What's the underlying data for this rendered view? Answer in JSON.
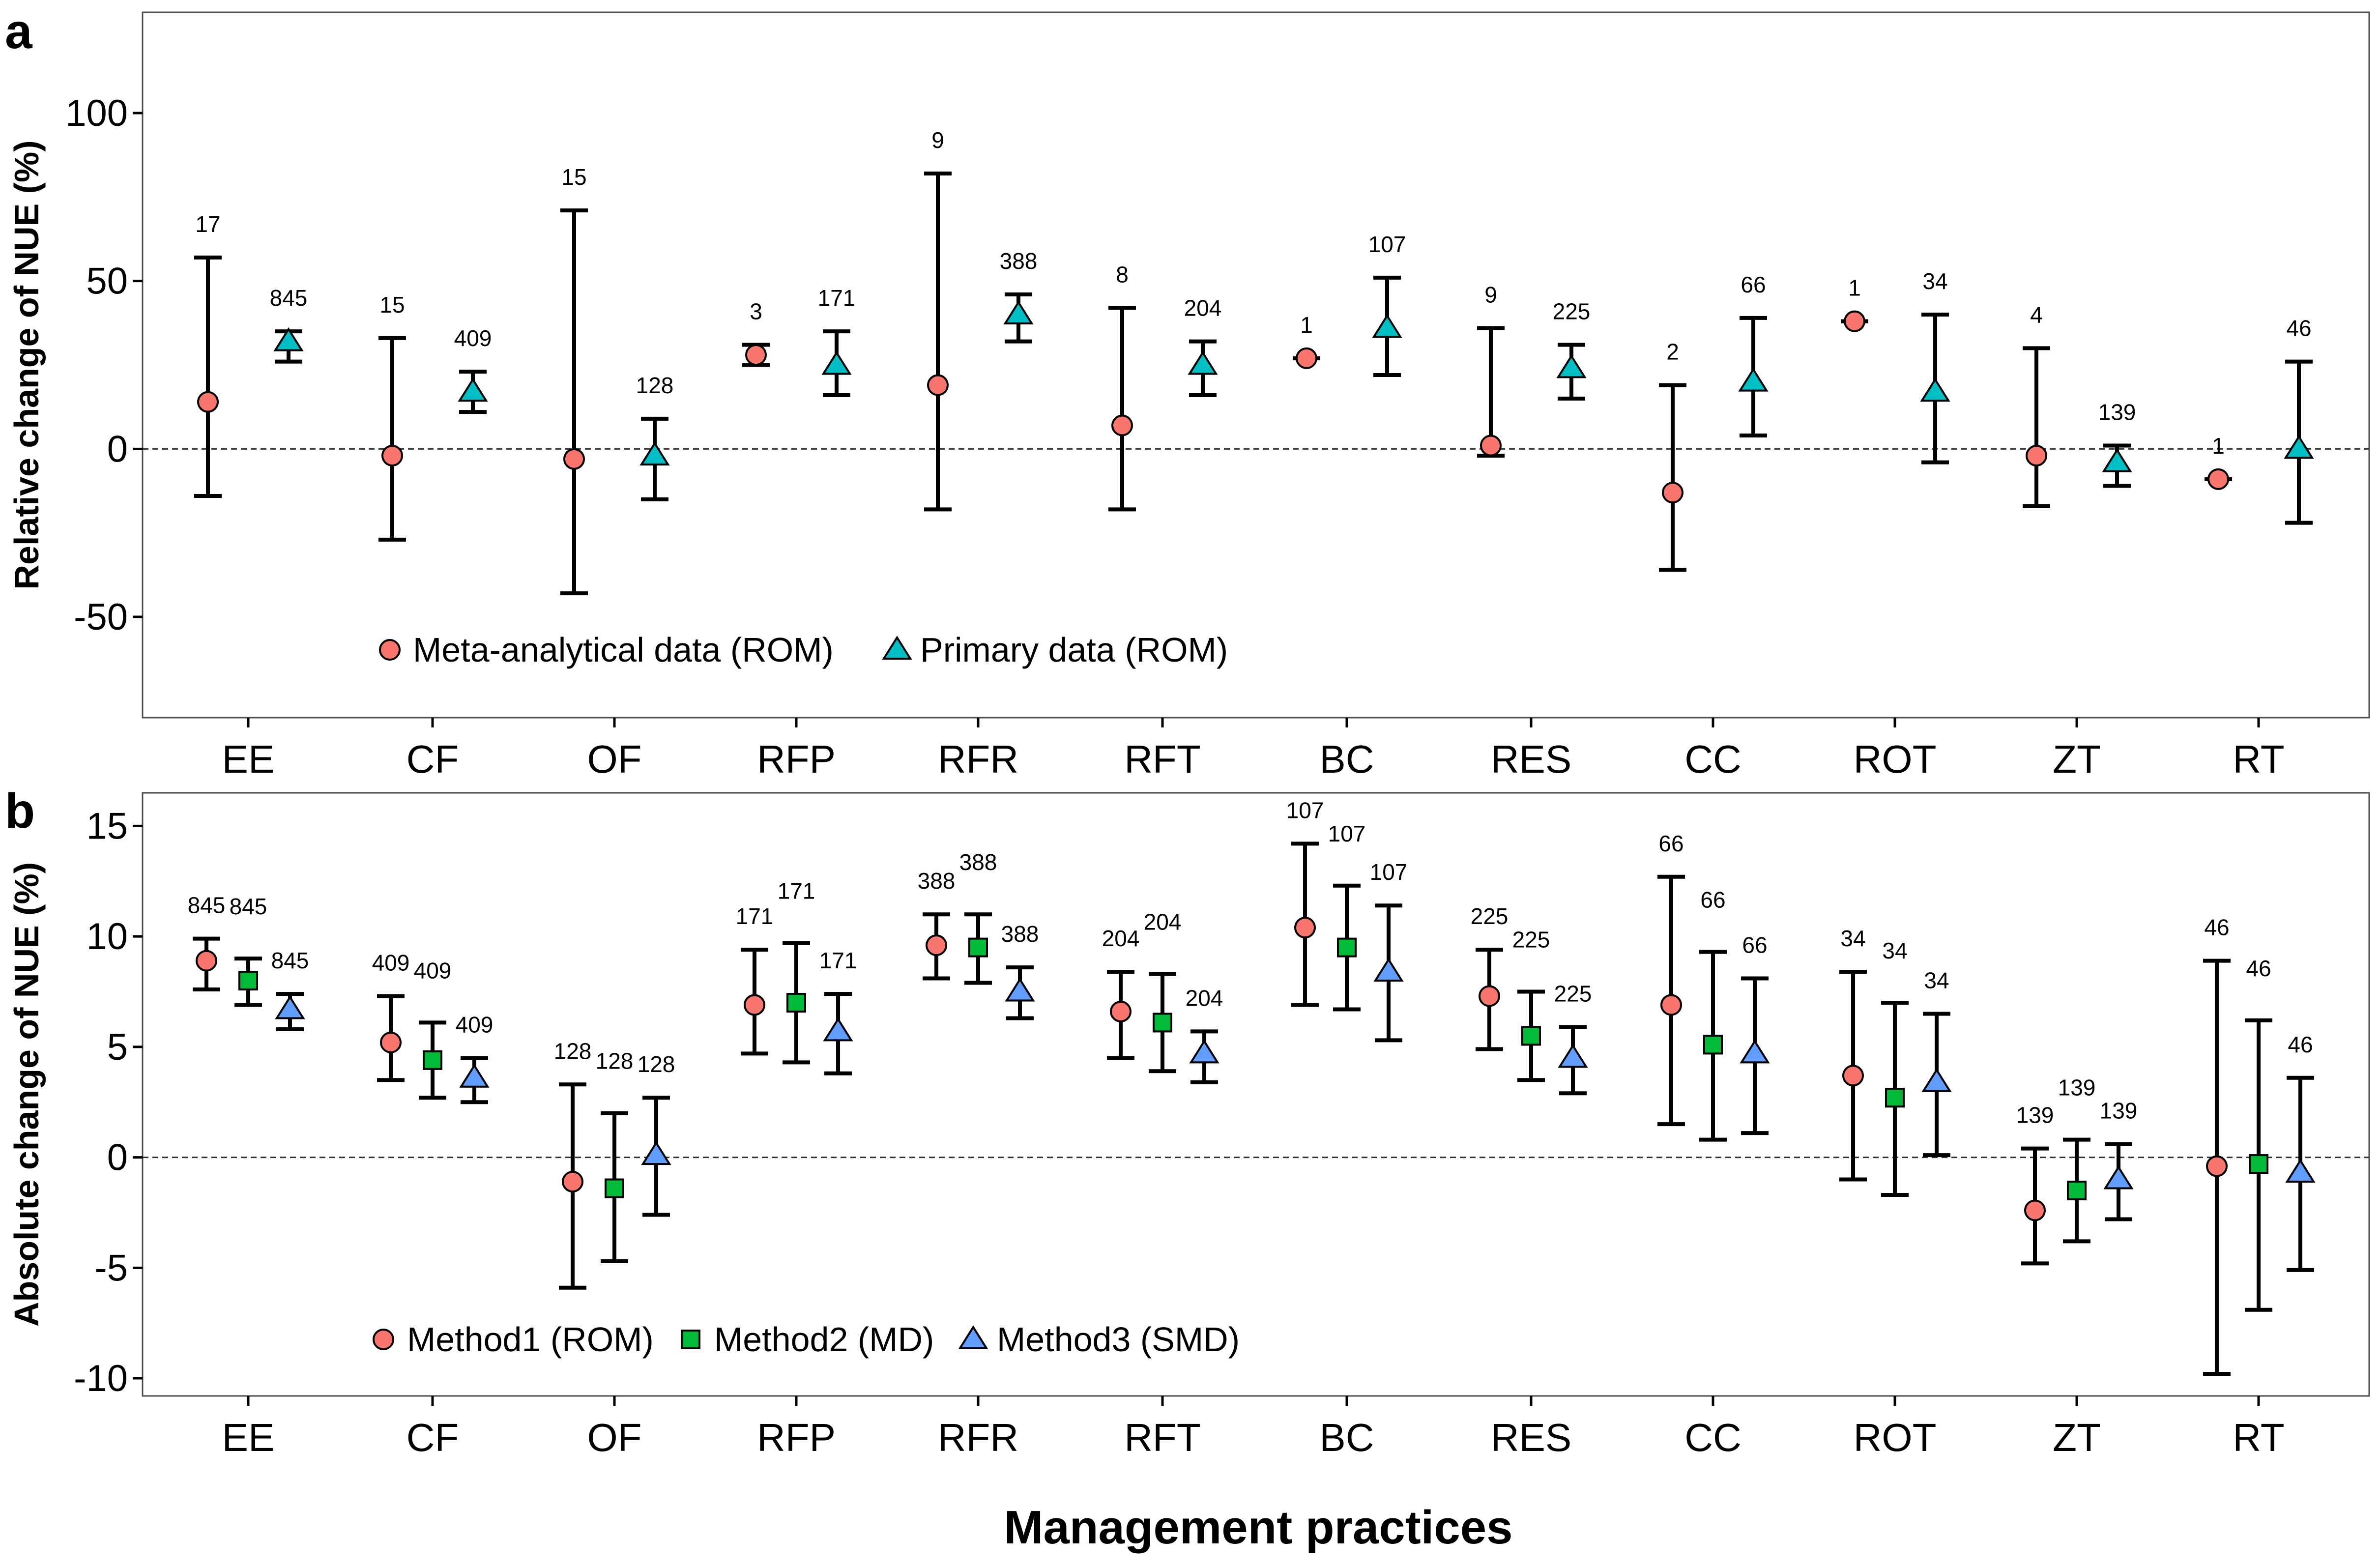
{
  "figure": {
    "xlabel": "Management practices",
    "colors": {
      "meta_rom": "#F8766D",
      "primary_rom": "#00BFC4",
      "md": "#00BA38",
      "smd": "#619CFF"
    }
  },
  "chart_data": [
    {
      "panel_tag": "a",
      "type": "scatter",
      "subtype": "point-with-error-bars",
      "ylabel": "Relative change of NUE (%)",
      "ylim": [
        -80,
        130
      ],
      "yticks": [
        -50,
        0,
        50,
        100
      ],
      "reference_line": 0,
      "legend_position": "bottom-left",
      "categories": [
        "EE",
        "CF",
        "OF",
        "RFP",
        "RFR",
        "RFT",
        "BC",
        "RES",
        "CC",
        "ROT",
        "ZT",
        "RT"
      ],
      "series": [
        {
          "name": "Meta-analytical data (ROM)",
          "marker": "circle",
          "color": "#F8766D",
          "values": [
            14,
            -2,
            -3,
            28,
            19,
            7,
            27,
            1,
            -13,
            38,
            -2,
            -9
          ],
          "lower": [
            -14,
            -27,
            -43,
            25,
            -18,
            -18,
            27,
            -2,
            -36,
            38,
            -17,
            -9
          ],
          "upper": [
            57,
            33,
            71,
            31,
            82,
            42,
            27,
            36,
            19,
            38,
            30,
            -9
          ],
          "n": [
            "17",
            "15",
            "15",
            "3",
            "9",
            "8",
            "1",
            "9",
            "2",
            "1",
            "4",
            "1"
          ]
        },
        {
          "name": "Primary data (ROM)",
          "marker": "triangle",
          "color": "#00BFC4",
          "values": [
            32,
            17,
            -2,
            25,
            40,
            25,
            36,
            24,
            20,
            17,
            -4,
            0
          ],
          "lower": [
            26,
            11,
            -15,
            16,
            32,
            16,
            22,
            15,
            4,
            -4,
            -11,
            -22
          ],
          "upper": [
            35,
            23,
            9,
            35,
            46,
            32,
            51,
            31,
            39,
            40,
            1,
            26
          ],
          "n": [
            "845",
            "409",
            "128",
            "171",
            "388",
            "204",
            "107",
            "225",
            "66",
            "34",
            "139",
            "46"
          ]
        }
      ]
    },
    {
      "panel_tag": "b",
      "type": "scatter",
      "subtype": "point-with-error-bars",
      "ylabel": "Absolute change of NUE (%)",
      "ylim": [
        -10.8,
        16.5
      ],
      "yticks": [
        -10,
        -5,
        0,
        5,
        10,
        15
      ],
      "reference_line": 0,
      "legend_position": "bottom-left",
      "categories": [
        "EE",
        "CF",
        "OF",
        "RFP",
        "RFR",
        "RFT",
        "BC",
        "RES",
        "CC",
        "ROT",
        "ZT",
        "RT"
      ],
      "series": [
        {
          "name": "Method1 (ROM)",
          "marker": "circle",
          "color": "#F8766D",
          "values": [
            8.9,
            5.2,
            -1.1,
            6.9,
            9.6,
            6.6,
            10.4,
            7.3,
            6.9,
            3.7,
            -2.4,
            -0.4
          ],
          "lower": [
            7.6,
            3.5,
            -5.9,
            4.7,
            8.1,
            4.5,
            6.9,
            4.9,
            1.5,
            -1.0,
            -4.8,
            -9.8
          ],
          "upper": [
            9.9,
            7.3,
            3.3,
            9.4,
            11.0,
            8.4,
            14.2,
            9.4,
            12.7,
            8.4,
            0.4,
            8.9
          ],
          "n": [
            "845",
            "409",
            "128",
            "171",
            "388",
            "204",
            "107",
            "225",
            "66",
            "34",
            "139",
            "46"
          ]
        },
        {
          "name": "Method2 (MD)",
          "marker": "square",
          "color": "#00BA38",
          "values": [
            8.0,
            4.4,
            -1.4,
            7.0,
            9.5,
            6.1,
            9.5,
            5.5,
            5.1,
            2.7,
            -1.5,
            -0.3
          ],
          "lower": [
            6.9,
            2.7,
            -4.7,
            4.3,
            7.9,
            3.9,
            6.7,
            3.5,
            0.8,
            -1.7,
            -3.8,
            -6.9
          ],
          "upper": [
            9.0,
            6.1,
            2.0,
            9.7,
            11.0,
            8.3,
            12.3,
            7.5,
            9.3,
            7.0,
            0.8,
            6.2
          ],
          "n": [
            "845",
            "409",
            "128",
            "171",
            "388",
            "204",
            "107",
            "225",
            "66",
            "34",
            "139",
            "46"
          ]
        },
        {
          "name": "Method3 (SMD)",
          "marker": "triangle",
          "color": "#619CFF",
          "values": [
            6.7,
            3.6,
            0.1,
            5.7,
            7.5,
            4.7,
            8.4,
            4.5,
            4.7,
            3.4,
            -1.0,
            -0.7
          ],
          "lower": [
            5.8,
            2.5,
            -2.6,
            3.8,
            6.3,
            3.4,
            5.3,
            2.9,
            1.1,
            0.1,
            -2.8,
            -5.1
          ],
          "upper": [
            7.4,
            4.5,
            2.7,
            7.4,
            8.6,
            5.7,
            11.4,
            5.9,
            8.1,
            6.5,
            0.6,
            3.6
          ],
          "n": [
            "845",
            "409",
            "128",
            "171",
            "388",
            "204",
            "107",
            "225",
            "66",
            "34",
            "139",
            "46"
          ]
        }
      ]
    }
  ]
}
